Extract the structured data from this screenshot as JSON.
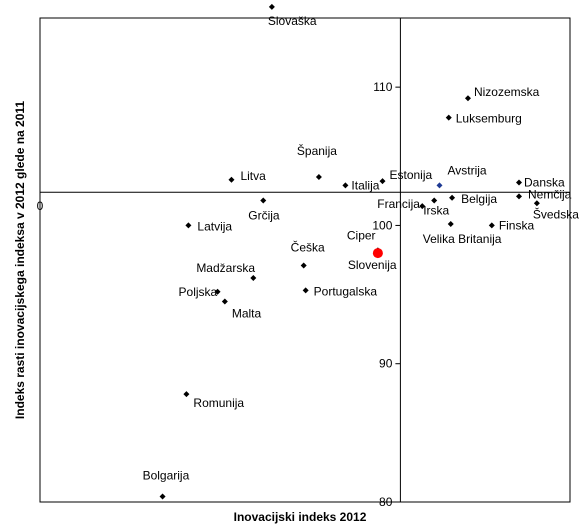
{
  "chart_data": {
    "type": "scatter",
    "title": "",
    "xlabel": "Inovacijski indeks 2012",
    "ylabel": "Indeks rasti inovacijskega indeksa v 2012 glede na 2011",
    "xlim": [
      0,
      0.8
    ],
    "ylim": [
      80,
      115
    ],
    "x_ticks": [
      {
        "value": 0,
        "label": "0"
      }
    ],
    "y_ticks": [
      {
        "value": 80,
        "label": "80"
      },
      {
        "value": 90,
        "label": "90"
      },
      {
        "value": 100,
        "label": "100"
      },
      {
        "value": 110,
        "label": "110"
      }
    ],
    "x_divider": 0.544,
    "y_divider": 102.4,
    "grid": false,
    "legend": "none",
    "colors": {
      "default_marker": "#000000",
      "eu_marker": "#1f3a93",
      "highlight": "#ff0000"
    },
    "points": [
      {
        "label": "Slovaška",
        "x": 0.35,
        "y": 115.8
      },
      {
        "label": "Nizozemska",
        "x": 0.646,
        "y": 109.2
      },
      {
        "label": "Luksemburg",
        "x": 0.617,
        "y": 107.8
      },
      {
        "label": "Španija",
        "x": 0.421,
        "y": 103.5
      },
      {
        "label": "Litva",
        "x": 0.289,
        "y": 103.3
      },
      {
        "label": "Italija",
        "x": 0.461,
        "y": 102.9
      },
      {
        "label": "Estonija",
        "x": 0.517,
        "y": 103.2
      },
      {
        "label": "Avstrija",
        "x": 0.603,
        "y": 102.9,
        "color": "#1f3a93"
      },
      {
        "label": "Danska",
        "x": 0.723,
        "y": 103.1
      },
      {
        "label": "Nemčija",
        "x": 0.723,
        "y": 102.1
      },
      {
        "label": "Švedska",
        "x": 0.75,
        "y": 101.6
      },
      {
        "label": "Francija",
        "x": 0.577,
        "y": 101.4
      },
      {
        "label": "Irska",
        "x": 0.595,
        "y": 101.8
      },
      {
        "label": "Belgija",
        "x": 0.622,
        "y": 102.0
      },
      {
        "label": "Finska",
        "x": 0.682,
        "y": 100.0
      },
      {
        "label": "Velika Britanija",
        "x": 0.62,
        "y": 100.1
      },
      {
        "label": "Grčija",
        "x": 0.337,
        "y": 101.8
      },
      {
        "label": "Latvija",
        "x": 0.224,
        "y": 100.0
      },
      {
        "label": "Ciper",
        "x": 0.51,
        "y": 98.2
      },
      {
        "label": "Slovenija",
        "x": 0.51,
        "y": 98.0,
        "color": "#ff0000",
        "highlight": true
      },
      {
        "label": "Češka",
        "x": 0.398,
        "y": 97.1
      },
      {
        "label": "Madžarska",
        "x": 0.322,
        "y": 96.2
      },
      {
        "label": "Poljska",
        "x": 0.268,
        "y": 95.2
      },
      {
        "label": "Portugalska",
        "x": 0.401,
        "y": 95.3
      },
      {
        "label": "Malta",
        "x": 0.279,
        "y": 94.5
      },
      {
        "label": "Romunija",
        "x": 0.221,
        "y": 87.8
      },
      {
        "label": "Bolgarija",
        "x": 0.185,
        "y": 80.4
      }
    ]
  }
}
